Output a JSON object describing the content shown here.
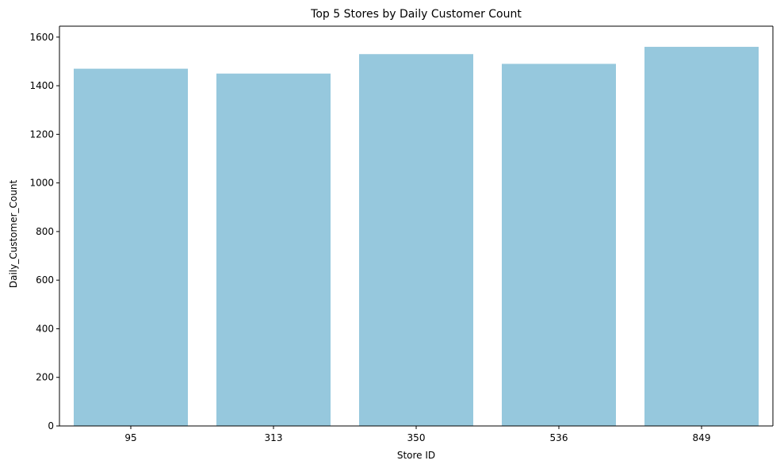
{
  "chart_data": {
    "type": "bar",
    "title": "Top 5 Stores by Daily Customer Count",
    "xlabel": "Store ID",
    "ylabel": "Daily_Customer_Count",
    "categories": [
      "95",
      "313",
      "350",
      "536",
      "849"
    ],
    "values": [
      1470,
      1450,
      1530,
      1490,
      1560
    ],
    "ylim": [
      0,
      1600
    ],
    "yticks": [
      0,
      200,
      400,
      600,
      800,
      1000,
      1200,
      1400,
      1600
    ],
    "ytick_labels": [
      "0",
      "200",
      "400",
      "600",
      "800",
      "1000",
      "1200",
      "1400",
      "1600"
    ],
    "grid": false,
    "legend": "none",
    "bar_color": "#96c8dd",
    "axis_color": "#000000"
  }
}
